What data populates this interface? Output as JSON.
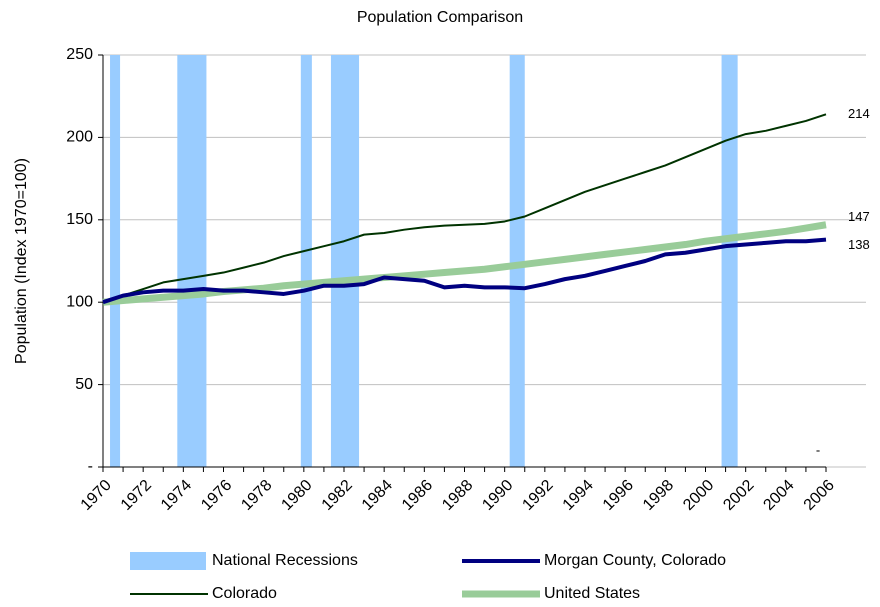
{
  "chart_data": {
    "type": "line",
    "title": "Population Comparison",
    "y_label": "Population (Index 1970=100)",
    "x": [
      1970,
      1971,
      1972,
      1973,
      1974,
      1975,
      1976,
      1977,
      1978,
      1979,
      1980,
      1981,
      1982,
      1983,
      1984,
      1985,
      1986,
      1987,
      1988,
      1989,
      1990,
      1991,
      1992,
      1993,
      1994,
      1995,
      1996,
      1997,
      1998,
      1999,
      2000,
      2001,
      2002,
      2003,
      2004,
      2005,
      2006
    ],
    "xlim": [
      1970,
      2006
    ],
    "xticks": [
      1970,
      1972,
      1974,
      1976,
      1978,
      1980,
      1982,
      1984,
      1986,
      1988,
      1990,
      1992,
      1994,
      1996,
      1998,
      2000,
      2002,
      2004,
      2006
    ],
    "ylim": [
      0,
      250
    ],
    "yticks": [
      {
        "value": 0,
        "label": "-"
      },
      50,
      100,
      150,
      200,
      250
    ],
    "grid": true,
    "recessions": {
      "name": "National Recessions",
      "color": "#99ccff",
      "periods": [
        [
          1970.35,
          1970.85
        ],
        [
          1973.7,
          1975.15
        ],
        [
          1979.85,
          1980.4
        ],
        [
          1981.35,
          1982.75
        ],
        [
          1990.25,
          1991.0
        ],
        [
          2000.8,
          2001.6
        ]
      ]
    },
    "series": [
      {
        "name": "Morgan County, Colorado",
        "color": "#000080",
        "width": 4,
        "values": [
          100,
          104,
          106,
          107,
          107,
          108,
          107,
          107,
          106,
          105,
          107,
          110,
          110,
          111,
          115,
          114,
          113,
          109,
          110,
          109,
          109,
          108.5,
          111,
          114,
          116,
          119,
          122,
          125,
          129,
          130,
          132,
          134,
          135,
          136,
          137,
          137,
          138
        ]
      },
      {
        "name": "Colorado",
        "color": "#003300",
        "width": 2,
        "values": [
          100,
          104,
          108,
          112,
          114,
          116,
          118,
          121,
          124,
          128,
          131,
          134,
          137,
          141,
          142,
          144,
          145.5,
          146.5,
          147,
          147.5,
          149,
          152,
          157,
          162,
          167,
          171,
          175,
          179,
          183,
          188,
          193,
          198,
          202,
          204,
          207,
          210,
          214
        ]
      },
      {
        "name": "United States",
        "color": "#99cc99",
        "width": 7,
        "values": [
          100,
          101,
          102,
          103,
          104,
          105,
          106.5,
          107.5,
          108.5,
          110,
          111,
          112,
          113,
          114,
          115,
          116,
          117,
          118,
          119,
          120,
          121.5,
          123,
          124.5,
          126,
          127.5,
          129,
          130.5,
          132,
          133.5,
          135,
          137,
          138.5,
          140,
          141.5,
          143,
          145,
          147
        ]
      }
    ],
    "annotations": [
      "-"
    ]
  }
}
